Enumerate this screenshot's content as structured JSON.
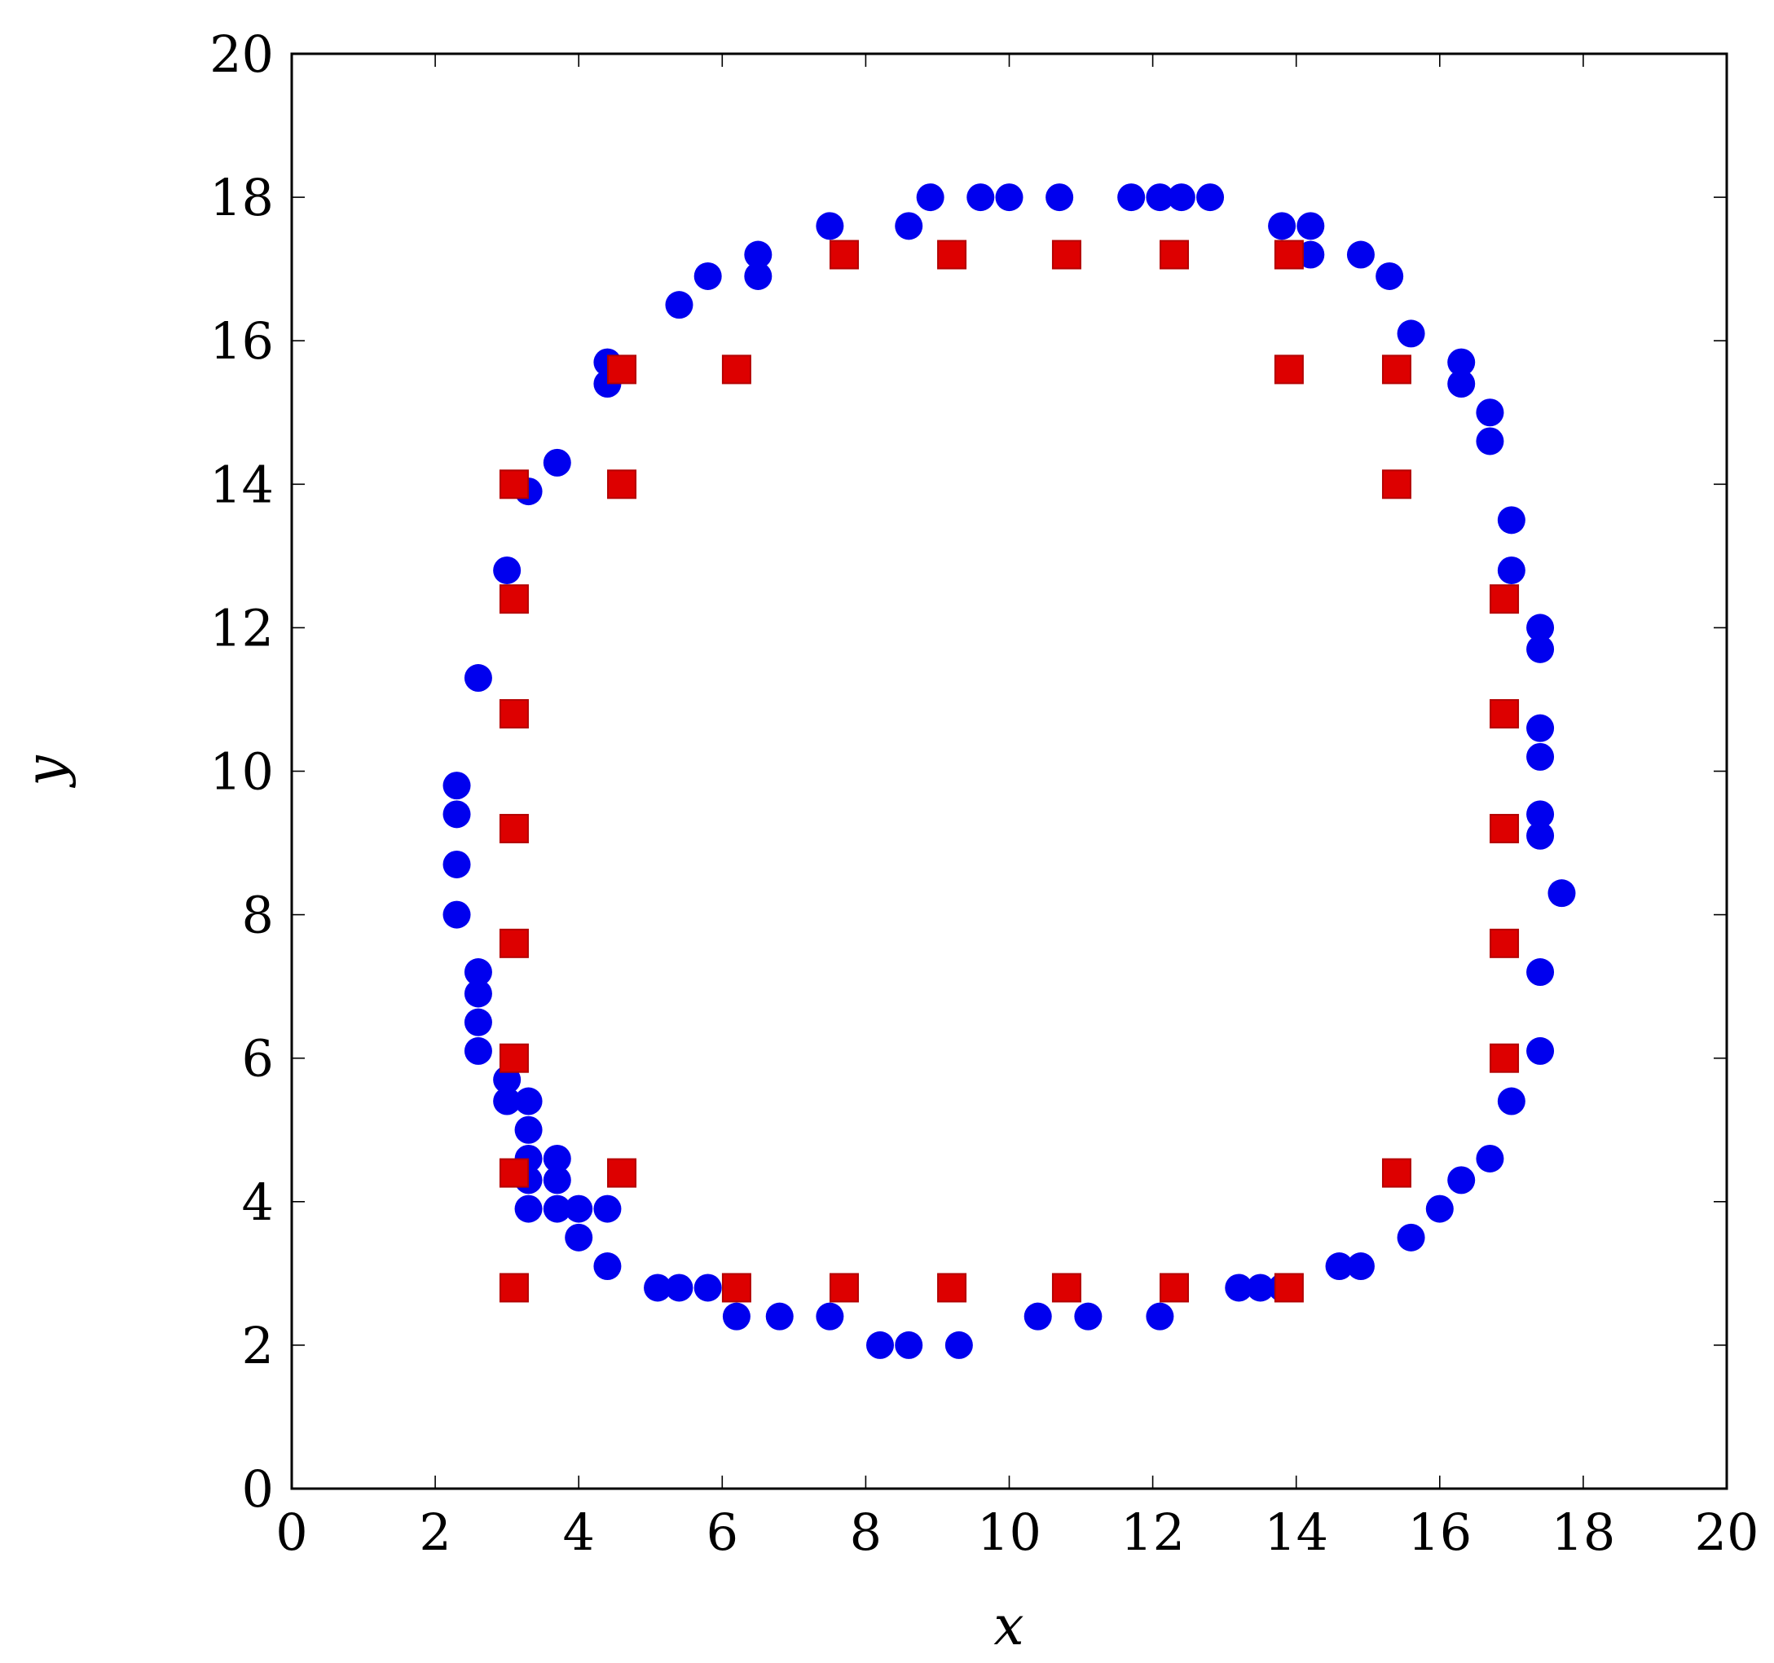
{
  "chart_data": {
    "type": "scatter",
    "title": "",
    "xlabel": "x",
    "ylabel": "y",
    "xlim": [
      0,
      20
    ],
    "ylim": [
      0,
      20
    ],
    "xticks": [
      "0",
      "2",
      "4",
      "6",
      "8",
      "10",
      "12",
      "14",
      "16",
      "18",
      "20"
    ],
    "yticks": [
      "0",
      "2",
      "4",
      "6",
      "8",
      "10",
      "12",
      "14",
      "16",
      "18",
      "20"
    ],
    "grid": false,
    "legend": "none",
    "series": [
      {
        "marker": "circle",
        "color": "#0000ee",
        "points": [
          [
            9.3,
            2.0
          ],
          [
            8.6,
            2.0
          ],
          [
            8.2,
            2.0
          ],
          [
            6.2,
            2.4
          ],
          [
            6.8,
            2.4
          ],
          [
            7.5,
            2.4
          ],
          [
            10.4,
            2.4
          ],
          [
            11.1,
            2.4
          ],
          [
            12.1,
            2.4
          ],
          [
            5.1,
            2.8
          ],
          [
            5.4,
            2.8
          ],
          [
            5.8,
            2.8
          ],
          [
            13.2,
            2.8
          ],
          [
            13.5,
            2.8
          ],
          [
            13.8,
            2.8
          ],
          [
            4.4,
            3.1
          ],
          [
            14.6,
            3.1
          ],
          [
            14.9,
            3.1
          ],
          [
            4.0,
            3.5
          ],
          [
            15.6,
            3.5
          ],
          [
            3.3,
            3.9
          ],
          [
            3.7,
            3.9
          ],
          [
            4.0,
            3.9
          ],
          [
            4.4,
            3.9
          ],
          [
            16.0,
            3.9
          ],
          [
            3.3,
            4.3
          ],
          [
            3.7,
            4.3
          ],
          [
            16.3,
            4.3
          ],
          [
            3.3,
            4.6
          ],
          [
            3.7,
            4.6
          ],
          [
            16.7,
            4.6
          ],
          [
            3.3,
            5.0
          ],
          [
            3.0,
            5.4
          ],
          [
            3.3,
            5.4
          ],
          [
            17.0,
            5.4
          ],
          [
            3.0,
            5.7
          ],
          [
            2.6,
            6.1
          ],
          [
            17.4,
            6.1
          ],
          [
            2.6,
            6.5
          ],
          [
            2.6,
            6.9
          ],
          [
            2.6,
            7.2
          ],
          [
            17.4,
            7.2
          ],
          [
            2.3,
            8.0
          ],
          [
            17.7,
            8.3
          ],
          [
            2.3,
            8.7
          ],
          [
            17.4,
            9.1
          ],
          [
            2.3,
            9.4
          ],
          [
            17.4,
            9.4
          ],
          [
            2.3,
            9.8
          ],
          [
            17.4,
            10.2
          ],
          [
            17.4,
            10.6
          ],
          [
            2.6,
            11.3
          ],
          [
            17.4,
            11.7
          ],
          [
            17.4,
            12.0
          ],
          [
            3.0,
            12.8
          ],
          [
            17.0,
            12.8
          ],
          [
            17.0,
            13.5
          ],
          [
            3.3,
            13.9
          ],
          [
            3.7,
            14.3
          ],
          [
            16.7,
            14.6
          ],
          [
            16.7,
            15.0
          ],
          [
            4.4,
            15.4
          ],
          [
            16.3,
            15.4
          ],
          [
            4.4,
            15.7
          ],
          [
            16.3,
            15.7
          ],
          [
            15.6,
            16.1
          ],
          [
            5.4,
            16.5
          ],
          [
            5.8,
            16.9
          ],
          [
            6.5,
            16.9
          ],
          [
            15.3,
            16.9
          ],
          [
            6.5,
            17.2
          ],
          [
            14.2,
            17.2
          ],
          [
            14.9,
            17.2
          ],
          [
            7.5,
            17.6
          ],
          [
            8.6,
            17.6
          ],
          [
            13.8,
            17.6
          ],
          [
            14.2,
            17.6
          ],
          [
            8.9,
            18.0
          ],
          [
            9.6,
            18.0
          ],
          [
            10.0,
            18.0
          ],
          [
            10.7,
            18.0
          ],
          [
            11.7,
            18.0
          ],
          [
            12.1,
            18.0
          ],
          [
            12.4,
            18.0
          ],
          [
            12.8,
            18.0
          ]
        ]
      },
      {
        "marker": "square",
        "color": "#dd0000",
        "points": [
          [
            3.1,
            2.8
          ],
          [
            6.2,
            2.8
          ],
          [
            7.7,
            2.8
          ],
          [
            9.2,
            2.8
          ],
          [
            10.8,
            2.8
          ],
          [
            12.3,
            2.8
          ],
          [
            13.9,
            2.8
          ],
          [
            3.1,
            4.4
          ],
          [
            4.6,
            4.4
          ],
          [
            15.4,
            4.4
          ],
          [
            3.1,
            6.0
          ],
          [
            16.9,
            6.0
          ],
          [
            3.1,
            7.6
          ],
          [
            16.9,
            7.6
          ],
          [
            3.1,
            9.2
          ],
          [
            16.9,
            9.2
          ],
          [
            3.1,
            10.8
          ],
          [
            16.9,
            10.8
          ],
          [
            3.1,
            12.4
          ],
          [
            16.9,
            12.4
          ],
          [
            3.1,
            14.0
          ],
          [
            4.6,
            14.0
          ],
          [
            15.4,
            14.0
          ],
          [
            4.6,
            15.6
          ],
          [
            6.2,
            15.6
          ],
          [
            13.9,
            15.6
          ],
          [
            15.4,
            15.6
          ],
          [
            7.7,
            17.2
          ],
          [
            9.2,
            17.2
          ],
          [
            10.8,
            17.2
          ],
          [
            12.3,
            17.2
          ],
          [
            13.9,
            17.2
          ]
        ]
      }
    ]
  }
}
